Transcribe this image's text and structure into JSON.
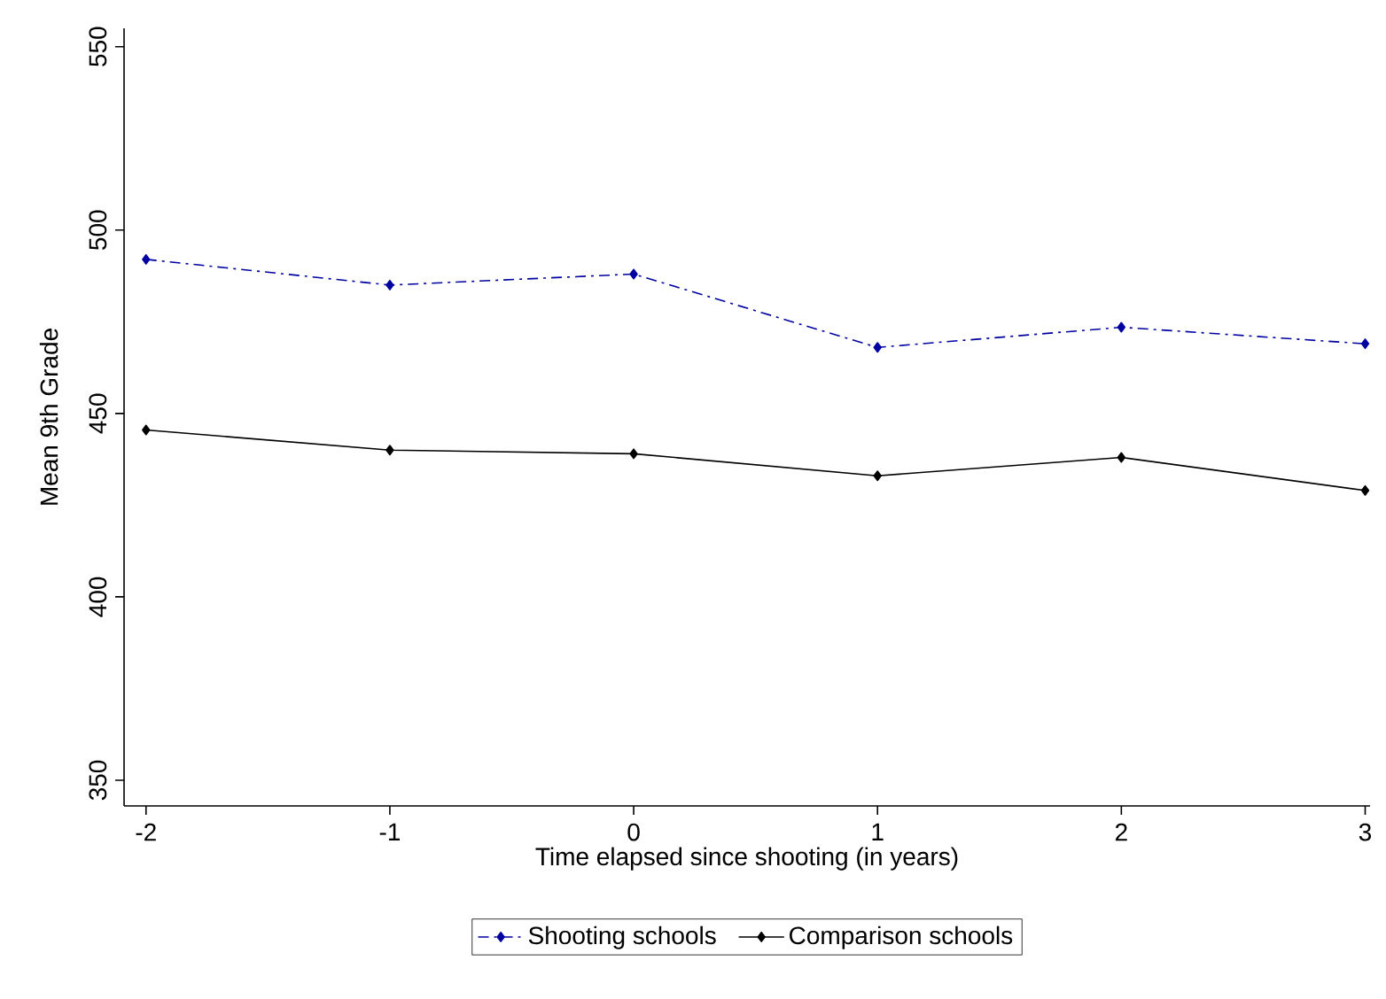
{
  "chart_data": {
    "type": "line",
    "xlabel": "Time elapsed since shooting (in years)",
    "ylabel": "Mean 9th Grade",
    "x": [
      -2,
      -1,
      0,
      1,
      2,
      3
    ],
    "series": [
      {
        "name": "Shooting schools",
        "color": "#0000a0",
        "line_style": "dashdot",
        "values": [
          492,
          485,
          488,
          468,
          473.5,
          469
        ]
      },
      {
        "name": "Comparison schools",
        "color": "#000000",
        "line_style": "solid",
        "values": [
          445.5,
          440,
          439,
          433,
          438,
          429
        ]
      }
    ],
    "xlim": [
      -2.09,
      3.02
    ],
    "ylim": [
      343,
      555
    ],
    "xticks": [
      -2,
      -1,
      0,
      1,
      2,
      3
    ],
    "yticks": [
      350,
      400,
      450,
      500,
      550
    ],
    "marker": "diamond",
    "grid": false,
    "legend": "bottom"
  }
}
